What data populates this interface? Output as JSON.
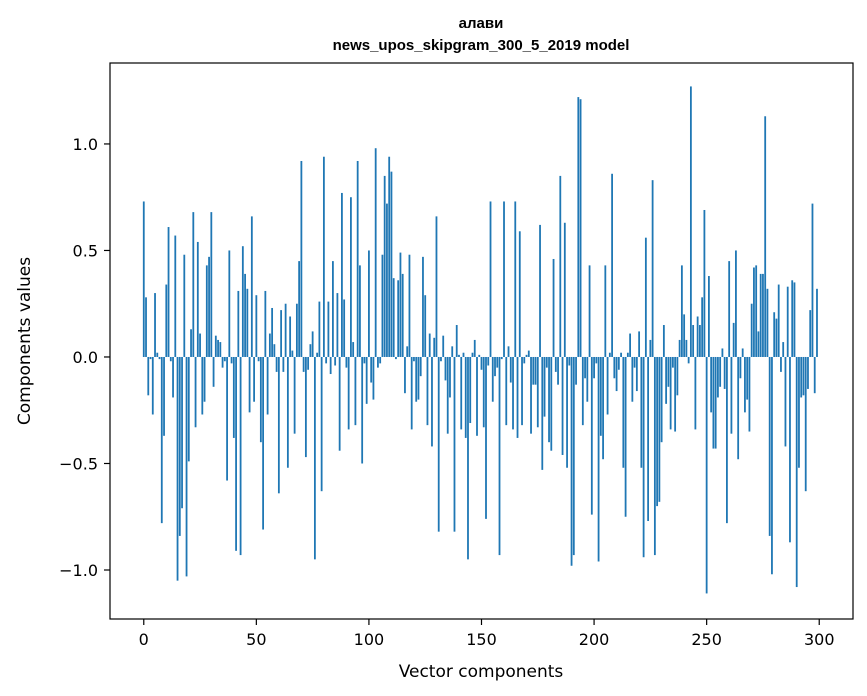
{
  "chart_data": {
    "type": "bar",
    "title": "алави",
    "subtitle": "news_upos_skipgram_300_5_2019 model",
    "xlabel": "Vector components",
    "ylabel": "Components values",
    "xlim": [
      -15,
      315
    ],
    "ylim": [
      -1.23,
      1.38
    ],
    "xticks": [
      0,
      50,
      100,
      150,
      200,
      250,
      300
    ],
    "xtick_labels": [
      "0",
      "50",
      "100",
      "150",
      "200",
      "250",
      "300"
    ],
    "yticks": [
      -1.0,
      -0.5,
      0.0,
      0.5,
      1.0
    ],
    "ytick_labels": [
      "−1.0",
      "−0.5",
      "0.0",
      "0.5",
      "1.0"
    ],
    "grid": false,
    "bar_color": "#1f77b4",
    "n_components": 300,
    "values": [
      0.73,
      0.28,
      -0.18,
      -0.01,
      -0.27,
      0.3,
      0.02,
      -0.01,
      -0.78,
      -0.37,
      0.34,
      0.61,
      -0.02,
      -0.19,
      0.57,
      -1.05,
      -0.84,
      -0.71,
      0.48,
      -1.03,
      -0.49,
      0.13,
      0.68,
      -0.33,
      0.54,
      0.11,
      -0.27,
      -0.21,
      0.43,
      0.47,
      0.68,
      -0.14,
      0.1,
      0.08,
      0.07,
      -0.05,
      -0.02,
      -0.58,
      0.5,
      -0.03,
      -0.38,
      -0.91,
      0.31,
      -0.93,
      0.52,
      0.39,
      0.32,
      -0.26,
      0.66,
      -0.21,
      0.29,
      -0.02,
      -0.4,
      -0.81,
      0.31,
      -0.27,
      0.11,
      0.23,
      0.06,
      -0.07,
      -0.64,
      0.22,
      -0.07,
      0.25,
      -0.52,
      0.19,
      0.03,
      -0.36,
      0.25,
      0.45,
      0.92,
      -0.07,
      -0.47,
      -0.06,
      0.06,
      0.12,
      -0.95,
      0.02,
      0.26,
      -0.63,
      0.94,
      -0.03,
      0.26,
      -0.08,
      0.45,
      -0.04,
      0.3,
      -0.44,
      0.77,
      0.27,
      -0.05,
      -0.34,
      0.75,
      0.07,
      -0.32,
      0.92,
      0.43,
      -0.5,
      -0.03,
      -0.22,
      0.5,
      -0.12,
      -0.2,
      0.98,
      -0.05,
      -0.03,
      0.48,
      0.85,
      0.72,
      0.94,
      0.87,
      0.37,
      -0.01,
      0.36,
      0.49,
      0.39,
      -0.17,
      0.05,
      0.48,
      -0.34,
      -0.02,
      -0.21,
      -0.2,
      -0.09,
      0.47,
      0.29,
      -0.32,
      0.11,
      -0.42,
      0.09,
      0.66,
      -0.82,
      -0.02,
      0.1,
      -0.11,
      -0.36,
      -0.19,
      0.05,
      -0.82,
      0.15,
      0.01,
      -0.34,
      0.02,
      -0.38,
      -0.95,
      -0.31,
      0.02,
      0.08,
      -0.37,
      0.01,
      -0.06,
      -0.33,
      -0.76,
      -0.04,
      0.73,
      -0.21,
      -0.09,
      -0.05,
      -0.93,
      -0.01,
      0.73,
      -0.32,
      0.05,
      -0.12,
      -0.34,
      0.73,
      -0.38,
      0.59,
      -0.32,
      -0.03,
      0.01,
      0.03,
      -0.36,
      -0.13,
      -0.13,
      -0.33,
      0.62,
      -0.53,
      -0.28,
      -0.05,
      -0.4,
      -0.44,
      0.46,
      -0.07,
      -0.13,
      0.85,
      -0.46,
      0.63,
      -0.52,
      -0.04,
      -0.98,
      -0.93,
      -0.13,
      1.22,
      1.21,
      -0.32,
      -0.1,
      -0.21,
      0.43,
      -0.74,
      -0.1,
      -0.03,
      -0.96,
      -0.37,
      -0.48,
      0.43,
      -0.27,
      0.02,
      0.86,
      -0.1,
      -0.16,
      -0.06,
      0.02,
      -0.52,
      -0.75,
      0.02,
      0.11,
      -0.21,
      -0.05,
      -0.16,
      0.12,
      -0.52,
      -0.94,
      0.56,
      -0.77,
      0.08,
      0.83,
      -0.93,
      -0.7,
      -0.68,
      -0.4,
      0.15,
      -0.22,
      -0.14,
      -0.34,
      -0.05,
      -0.35,
      -0.18,
      0.08,
      0.43,
      0.2,
      0.08,
      -0.03,
      1.27,
      0.15,
      -0.34,
      0.19,
      0.15,
      0.28,
      0.69,
      -1.11,
      0.38,
      -0.26,
      -0.43,
      -0.43,
      -0.19,
      -0.14,
      0.04,
      -0.15,
      -0.78,
      0.45,
      -0.36,
      0.16,
      0.5,
      -0.48,
      -0.1,
      0.04,
      -0.26,
      -0.2,
      -0.35,
      0.25,
      0.42,
      0.43,
      0.12,
      0.39,
      0.39,
      1.13,
      0.32,
      -0.84,
      -1.02,
      0.21,
      0.18,
      0.34,
      -0.07,
      0.07,
      -0.42,
      0.33,
      -0.87,
      0.36,
      0.35,
      -1.08,
      -0.52,
      -0.19,
      -0.18,
      -0.63,
      -0.15,
      0.22,
      0.72,
      -0.17,
      0.32
    ]
  }
}
